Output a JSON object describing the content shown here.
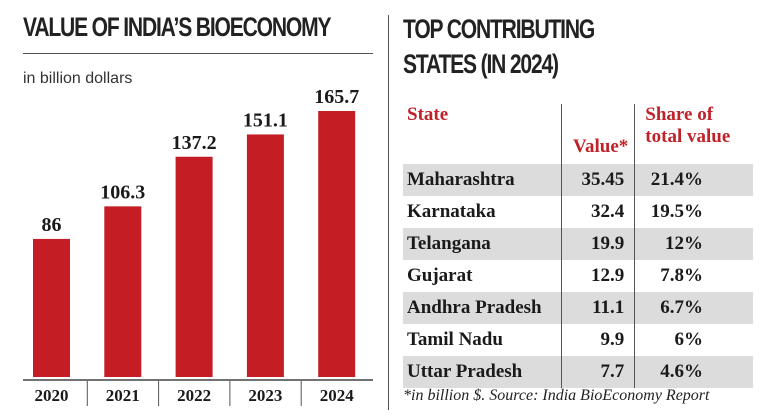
{
  "left": {
    "title": "VALUE OF INDIA’S BIOECONOMY",
    "subtitle": "in billion dollars"
  },
  "chart_data": {
    "type": "bar",
    "title": "VALUE OF INDIA’S BIOECONOMY",
    "ylabel": "in billion dollars",
    "categories": [
      "2020",
      "2021",
      "2022",
      "2023",
      "2024"
    ],
    "values": [
      86,
      106.3,
      137.2,
      151.1,
      165.7
    ],
    "value_labels": [
      "86",
      "106.3",
      "137.2",
      "151.1",
      "165.7"
    ],
    "ylim": [
      0,
      170
    ],
    "grid": false,
    "bar_color": "#c41e24"
  },
  "right": {
    "title_line1": "TOP CONTRIBUTING",
    "title_line2": "STATES (IN 2024)",
    "headers": {
      "state": "State",
      "value": "Value*",
      "share_line1": "Share of",
      "share_line2": "total value"
    },
    "rows": [
      {
        "state": "Maharashtra",
        "value": "35.45",
        "share": "21.4%"
      },
      {
        "state": "Karnataka",
        "value": "32.4",
        "share": "19.5%"
      },
      {
        "state": "Telangana",
        "value": "19.9",
        "share": "12%"
      },
      {
        "state": "Gujarat",
        "value": "12.9",
        "share": "7.8%"
      },
      {
        "state": "Andhra Pradesh",
        "value": "11.1",
        "share": "6.7%"
      },
      {
        "state": "Tamil Nadu",
        "value": "9.9",
        "share": "6%"
      },
      {
        "state": "Uttar Pradesh",
        "value": "7.7",
        "share": "4.6%"
      }
    ],
    "footnote": "*in billion $. Source: India BioEconomy Report",
    "header_color": "#c0222a",
    "shade_color": "#dcdcdc"
  }
}
